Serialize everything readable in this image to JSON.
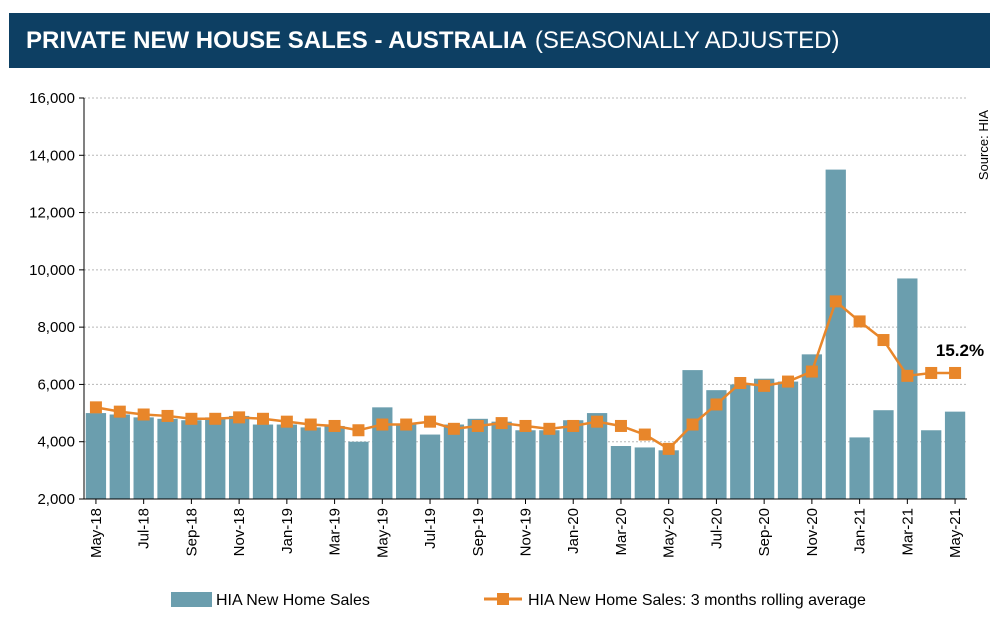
{
  "header": {
    "title": "PRIVATE NEW HOUSE SALES -  AUSTRALIA",
    "subtitle": "(SEASONALLY ADJUSTED)"
  },
  "colors": {
    "bar": "#6b9eae",
    "line": "#e8862a",
    "header_bg": "#0d3f63"
  },
  "chart_data": {
    "type": "bar",
    "title": "PRIVATE NEW HOUSE SALES - AUSTRALIA (SEASONALLY ADJUSTED)",
    "source": "Source: HIA",
    "annotation": "15.2%",
    "ylim": [
      2000,
      16000
    ],
    "yticks": [
      "2,000",
      "4,000",
      "6,000",
      "8,000",
      "10,000",
      "12,000",
      "14,000",
      "16,000"
    ],
    "ytick_values": [
      2000,
      4000,
      6000,
      8000,
      10000,
      12000,
      14000,
      16000
    ],
    "categories": [
      "May-18",
      "Jun-18",
      "Jul-18",
      "Aug-18",
      "Sep-18",
      "Oct-18",
      "Nov-18",
      "Dec-18",
      "Jan-19",
      "Feb-19",
      "Mar-19",
      "Apr-19",
      "May-19",
      "Jun-19",
      "Jul-19",
      "Aug-19",
      "Sep-19",
      "Oct-19",
      "Nov-19",
      "Dec-19",
      "Jan-20",
      "Feb-20",
      "Mar-20",
      "Apr-20",
      "May-20",
      "Jun-20",
      "Jul-20",
      "Aug-20",
      "Sep-20",
      "Oct-20",
      "Nov-20",
      "Dec-20",
      "Jan-21",
      "Feb-21",
      "Mar-21",
      "Apr-21",
      "May-21"
    ],
    "xtick_labels": [
      "May-18",
      "Jul-18",
      "Sep-18",
      "Nov-18",
      "Jan-19",
      "Mar-19",
      "May-19",
      "Jul-19",
      "Sep-19",
      "Nov-19",
      "Jan-20",
      "Mar-20",
      "May-20",
      "Jul-20",
      "Sep-20",
      "Nov-20",
      "Jan-21",
      "Mar-21",
      "May-21"
    ],
    "series": [
      {
        "name": "HIA New Home Sales",
        "kind": "bar",
        "values": [
          5000,
          4950,
          4850,
          4800,
          4750,
          4850,
          4900,
          4600,
          4600,
          4500,
          4550,
          4000,
          5200,
          4600,
          4250,
          4600,
          4800,
          4700,
          4400,
          4400,
          4750,
          5000,
          3850,
          3800,
          3700,
          6500,
          5800,
          6000,
          6200,
          6100,
          7050,
          13500,
          4150,
          5100,
          9700,
          4400,
          5050
        ]
      },
      {
        "name": "HIA New Home Sales: 3 months rolling average",
        "kind": "line",
        "values": [
          5200,
          5050,
          4950,
          4900,
          4800,
          4800,
          4850,
          4800,
          4700,
          4600,
          4550,
          4400,
          4600,
          4600,
          4700,
          4450,
          4550,
          4650,
          4550,
          4450,
          4550,
          4700,
          4550,
          4250,
          3750,
          4600,
          5300,
          6050,
          5950,
          6100,
          6450,
          8900,
          8200,
          7550,
          6300,
          6400,
          6400
        ]
      }
    ]
  }
}
